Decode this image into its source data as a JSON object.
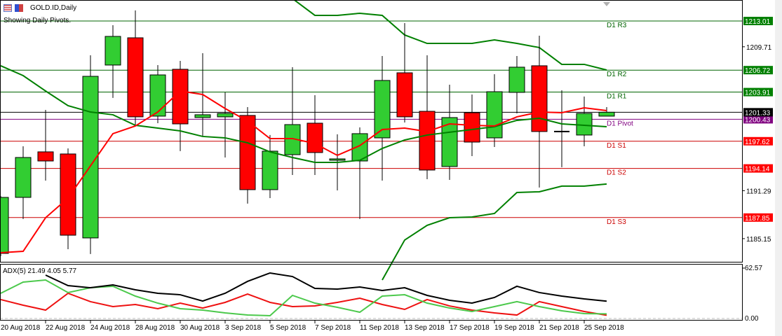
{
  "header": {
    "symbol_title": "GOLD.ID,Daily",
    "subtitle": "Showing Daily Pivots."
  },
  "colors": {
    "bull": "#32cd32",
    "bear": "#ff0000",
    "band": "#008000",
    "ma": "#ff0000",
    "pivot": "#800080",
    "resistance": "#006400",
    "support": "#cc0000",
    "adx": "#000000",
    "plus_di": "#4cc94c",
    "minus_di": "#ee1111"
  },
  "pivots": [
    {
      "label": "D1 R3",
      "value": "1213.01",
      "price": 1213.01,
      "kind": "resistance"
    },
    {
      "label": "D1 R2",
      "value": "1206.72",
      "price": 1206.72,
      "kind": "resistance"
    },
    {
      "label": "D1 R1",
      "value": "1203.91",
      "price": 1203.91,
      "kind": "resistance"
    },
    {
      "label": "D1 Pivot",
      "value": "1200.43",
      "price": 1200.43,
      "kind": "pivot"
    },
    {
      "label": "D1 S1",
      "value": "1197.62",
      "price": 1197.62,
      "kind": "support"
    },
    {
      "label": "D1 S2",
      "value": "1194.14",
      "price": 1194.14,
      "kind": "support"
    },
    {
      "label": "D1 S3",
      "value": "1187.85",
      "price": 1187.85,
      "kind": "support"
    }
  ],
  "current_price": {
    "value": "1201.33",
    "price": 1201.33
  },
  "price_axis_ticks": [
    {
      "label": "1209.71",
      "price": 1209.71
    },
    {
      "label": "1191.29",
      "price": 1191.29
    },
    {
      "label": "1185.15",
      "price": 1185.15
    }
  ],
  "adx": {
    "legend": "ADX(5) 21.49 4.05 5.77",
    "axis_max_label": "62.57",
    "axis_max": 62.57,
    "axis_min_label": "0.00"
  },
  "date_labels": [
    "20 Aug 2018",
    "22 Aug 2018",
    "24 Aug 2018",
    "28 Aug 2018",
    "30 Aug 2018",
    "3 Sep 2018",
    "5 Sep 2018",
    "7 Sep 2018",
    "11 Sep 2018",
    "13 Sep 2018",
    "17 Sep 2018",
    "19 Sep 2018",
    "21 Sep 2018",
    "25 Sep 2018"
  ],
  "chart_data": {
    "type": "candlestick",
    "dates": [
      "2018-08-20",
      "2018-08-21",
      "2018-08-22",
      "2018-08-23",
      "2018-08-24",
      "2018-08-27",
      "2018-08-28",
      "2018-08-29",
      "2018-08-30",
      "2018-08-31",
      "2018-09-03",
      "2018-09-04",
      "2018-09-05",
      "2018-09-06",
      "2018-09-07",
      "2018-09-10",
      "2018-09-11",
      "2018-09-12",
      "2018-09-13",
      "2018-09-14",
      "2018-09-17",
      "2018-09-18",
      "2018-09-19",
      "2018-09-20",
      "2018-09-21",
      "2018-09-24",
      "2018-09-25",
      "2018-09-26"
    ],
    "ohlc": [
      [
        1183.26,
        1190.6,
        1182.9,
        1190.43
      ],
      [
        1190.43,
        1196.97,
        1187.66,
        1195.54
      ],
      [
        1196.26,
        1201.63,
        1192.58,
        1195.09
      ],
      [
        1195.99,
        1196.7,
        1183.8,
        1185.59
      ],
      [
        1185.24,
        1208.62,
        1183.18,
        1205.93
      ],
      [
        1207.37,
        1212.47,
        1203.16,
        1211.04
      ],
      [
        1210.86,
        1214.36,
        1199.75,
        1200.74
      ],
      [
        1200.83,
        1207.37,
        1199.93,
        1206.11
      ],
      [
        1206.83,
        1207.9,
        1196.35,
        1199.84
      ],
      [
        1200.65,
        1208.89,
        1198.23,
        1201.01
      ],
      [
        1200.74,
        1203.87,
        1195.54,
        1201.18
      ],
      [
        1200.92,
        1201.99,
        1189.63,
        1191.42
      ],
      [
        1191.42,
        1198.41,
        1190.34,
        1196.35
      ],
      [
        1195.9,
        1207.1,
        1193.3,
        1199.75
      ],
      [
        1199.93,
        1203.51,
        1193.3,
        1196.17
      ],
      [
        1195.18,
        1198.5,
        1191.33,
        1195.36
      ],
      [
        1195.09,
        1199.39,
        1187.66,
        1198.59
      ],
      [
        1198.05,
        1208.53,
        1192.58,
        1205.4
      ],
      [
        1206.38,
        1212.74,
        1200.02,
        1200.74
      ],
      [
        1201.45,
        1208.62,
        1192.76,
        1193.93
      ],
      [
        1194.38,
        1204.86,
        1192.67,
        1200.65
      ],
      [
        1201.27,
        1203.6,
        1195.72,
        1197.51
      ],
      [
        1198.05,
        1206.2,
        1196.88,
        1203.96
      ],
      [
        1203.87,
        1208.53,
        1201.18,
        1207.1
      ],
      [
        1207.28,
        1211.13,
        1191.69,
        1198.86
      ],
      [
        1198.86,
        1204.14,
        1194.29,
        1198.86
      ],
      [
        1198.41,
        1203.34,
        1196.97,
        1201.18
      ],
      [
        1200.83,
        1201.99,
        1200.83,
        1201.33
      ]
    ],
    "moving_average": [
      1183.35,
      1183.53,
      1187.83,
      1190.34,
      1194.47,
      1198.59,
      1199.57,
      1201.36,
      1204.05,
      1203.6,
      1201.81,
      1200.2,
      1197.96,
      1197.96,
      1197.33,
      1195.81,
      1197.06,
      1199.12,
      1199.3,
      1198.86,
      1199.84,
      1199.66,
      1199.57,
      1200.74,
      1201.36,
      1201.27,
      1201.9,
      1201.54
    ],
    "band_middle": [
      1207.28,
      1206.02,
      1204.05,
      1202.17,
      1201.36,
      1201.01,
      1199.66,
      1199.3,
      1198.94,
      1198.23,
      1198.05,
      1197.42,
      1196.26,
      1195.54,
      1194.91,
      1194.91,
      1195.18,
      1196.7,
      1197.78,
      1198.41,
      1198.77,
      1199.12,
      1199.48,
      1200.29,
      1200.56,
      1199.84,
      1199.66,
      1199.48
    ],
    "band_upper": [
      null,
      null,
      null,
      null,
      null,
      null,
      null,
      null,
      null,
      null,
      null,
      null,
      null,
      1215.88,
      1213.73,
      1213.73,
      1214.0,
      1213.73,
      1211.22,
      1210.14,
      1210.14,
      1210.14,
      1210.59,
      1210.14,
      1209.61,
      1207.46,
      1207.46,
      1206.74
    ],
    "band_lower": [
      null,
      null,
      null,
      null,
      null,
      null,
      null,
      null,
      null,
      null,
      null,
      null,
      null,
      null,
      null,
      null,
      null,
      1179.86,
      1184.97,
      1186.85,
      1187.83,
      1187.92,
      1188.37,
      1191.06,
      1191.15,
      1191.87,
      1191.87,
      1192.14
    ],
    "adx_main": [
      null,
      null,
      53.9,
      40.8,
      38.2,
      41.7,
      35.6,
      31.3,
      29.5,
      21.7,
      31.3,
      46.1,
      56.5,
      52.1,
      37.4,
      36.5,
      39.1,
      34.8,
      38.2,
      28.7,
      22.6,
      19.1,
      26.1,
      40.0,
      32.2,
      27.8,
      24.3,
      21.49
    ],
    "plus_di": [
      31.3,
      45.2,
      47.8,
      32.2,
      38.2,
      40.0,
      27.8,
      19.1,
      12.2,
      10.4,
      7.0,
      4.3,
      3.5,
      28.7,
      19.1,
      13.9,
      7.8,
      27.8,
      29.5,
      19.1,
      13.0,
      8.7,
      14.8,
      20.9,
      14.8,
      9.6,
      6.1,
      5.77
    ],
    "minus_di": [
      23.5,
      16.5,
      10.4,
      31.3,
      20.9,
      14.8,
      17.4,
      12.2,
      19.1,
      13.0,
      20.0,
      30.4,
      20.0,
      14.8,
      15.6,
      20.0,
      25.2,
      17.4,
      11.3,
      23.5,
      15.6,
      10.4,
      7.0,
      4.3,
      20.9,
      14.8,
      8.7,
      4.05
    ],
    "price_range": [
      1180.0,
      1216.0
    ],
    "adx_range": [
      0,
      62.57
    ],
    "grid": false
  }
}
